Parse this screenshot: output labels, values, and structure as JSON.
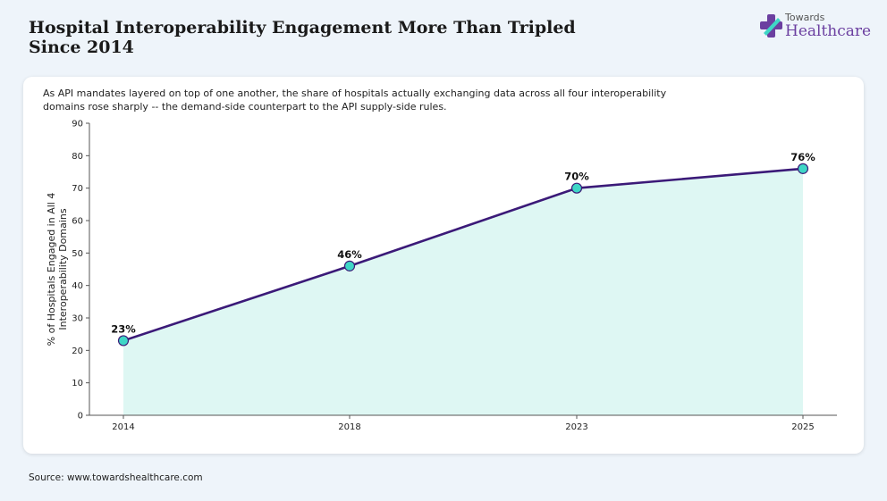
{
  "header": {
    "title": "Hospital Interoperability Engagement More Than Tripled Since 2014",
    "logo_top": "Towards",
    "logo_main": "Healthcare"
  },
  "subtitle": "As API mandates layered on top of one another, the share of hospitals actually exchanging data across all four interoperability domains rose sharply -- the demand-side counterpart to the API supply-side rules.",
  "source": "Source: www.towardshealthcare.com",
  "colors": {
    "line": "#3b1a78",
    "marker": "#3fd6c6",
    "fill": "#def7f3",
    "logo_purple": "#6b3fa0",
    "logo_teal": "#3fd6c6"
  },
  "chart_data": {
    "type": "line",
    "title": "",
    "xlabel": "",
    "ylabel": "% of Hospitals Engaged in All 4 Interoperability Domains",
    "ylabel_lines": [
      "% of Hospitals Engaged in All 4",
      "Interoperability Domains"
    ],
    "x": [
      "2014",
      "2018",
      "2023",
      "2025"
    ],
    "series": [
      {
        "values": [
          23,
          46,
          70,
          76
        ],
        "labels": [
          "23%",
          "46%",
          "70%",
          "76%"
        ]
      }
    ],
    "ylim": [
      0,
      90
    ],
    "yticks": [
      0,
      10,
      20,
      30,
      40,
      50,
      60,
      70,
      80,
      90
    ],
    "area_fill": true,
    "grid": false
  }
}
